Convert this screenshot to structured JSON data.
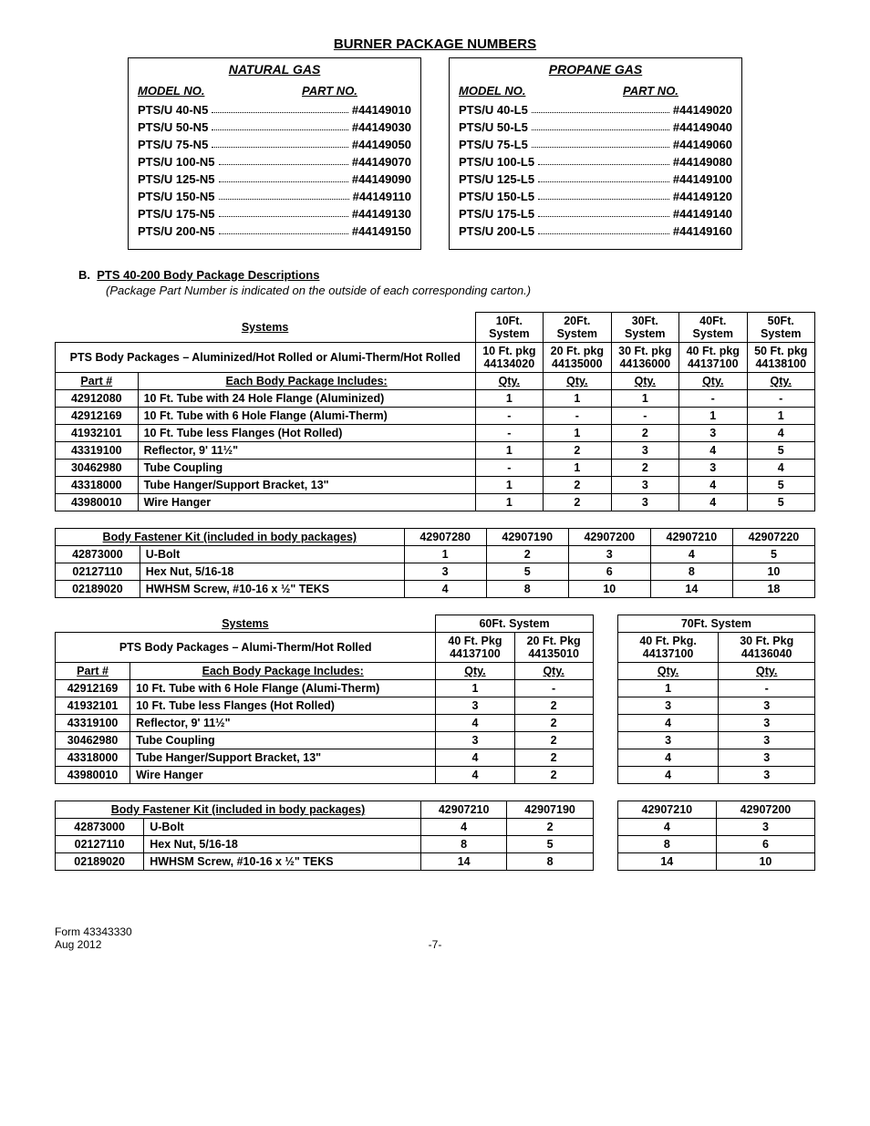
{
  "title": "BURNER PACKAGE NUMBERS",
  "burner": {
    "natural": {
      "heading": "NATURAL GAS",
      "modelHdr": "MODEL NO.",
      "partHdr": "PART NO.",
      "rows": [
        {
          "model": "PTS/U 40-N5",
          "part": "#44149010"
        },
        {
          "model": "PTS/U 50-N5",
          "part": "#44149030"
        },
        {
          "model": "PTS/U 75-N5",
          "part": "#44149050"
        },
        {
          "model": "PTS/U 100-N5",
          "part": "#44149070"
        },
        {
          "model": "PTS/U 125-N5",
          "part": "#44149090"
        },
        {
          "model": "PTS/U 150-N5",
          "part": "#44149110"
        },
        {
          "model": "PTS/U 175-N5",
          "part": "#44149130"
        },
        {
          "model": "PTS/U 200-N5",
          "part": "#44149150"
        }
      ]
    },
    "propane": {
      "heading": "PROPANE GAS",
      "modelHdr": "MODEL NO.",
      "partHdr": "PART NO.",
      "rows": [
        {
          "model": "PTS/U 40-L5",
          "part": "#44149020"
        },
        {
          "model": "PTS/U 50-L5",
          "part": "#44149040"
        },
        {
          "model": "PTS/U 75-L5",
          "part": "#44149060"
        },
        {
          "model": "PTS/U 100-L5",
          "part": "#44149080"
        },
        {
          "model": "PTS/U 125-L5",
          "part": "#44149100"
        },
        {
          "model": "PTS/U 150-L5",
          "part": "#44149120"
        },
        {
          "model": "PTS/U 175-L5",
          "part": "#44149140"
        },
        {
          "model": "PTS/U 200-L5",
          "part": "#44149160"
        }
      ]
    }
  },
  "sectionB": {
    "label": "B.",
    "title": "PTS 40-200 Body Package Descriptions",
    "note": "(Package Part Number is indicated on the outside of each corresponding carton.)"
  },
  "table1": {
    "systemsHdr": "Systems",
    "systems": [
      "10Ft. System",
      "20Ft. System",
      "30Ft. System",
      "40Ft. System",
      "50Ft. System"
    ],
    "pkgHdr": "PTS Body Packages – Aluminized/Hot Rolled or Alumi-Therm/Hot Rolled",
    "pkgs": [
      {
        "l1": "10 Ft. pkg",
        "l2": "44134020"
      },
      {
        "l1": "20 Ft. pkg",
        "l2": "44135000"
      },
      {
        "l1": "30 Ft. pkg",
        "l2": "44136000"
      },
      {
        "l1": "40 Ft. pkg",
        "l2": "44137100"
      },
      {
        "l1": "50 Ft. pkg",
        "l2": "44138100"
      }
    ],
    "partHdr": "Part #",
    "includesHdr": "Each Body Package Includes:",
    "qty": "Qty.",
    "rows": [
      {
        "p": "42912080",
        "d": "10 Ft. Tube with 24 Hole Flange (Aluminized)",
        "q": [
          "1",
          "1",
          "1",
          "-",
          "-"
        ]
      },
      {
        "p": "42912169",
        "d": "10 Ft. Tube with 6 Hole Flange (Alumi-Therm)",
        "q": [
          "-",
          "-",
          "-",
          "1",
          "1"
        ]
      },
      {
        "p": "41932101",
        "d": "10 Ft. Tube less Flanges (Hot Rolled)",
        "q": [
          "-",
          "1",
          "2",
          "3",
          "4"
        ]
      },
      {
        "p": "43319100",
        "d": "Reflector, 9' 11½\"",
        "q": [
          "1",
          "2",
          "3",
          "4",
          "5"
        ]
      },
      {
        "p": "30462980",
        "d": "Tube Coupling",
        "q": [
          "-",
          "1",
          "2",
          "3",
          "4"
        ]
      },
      {
        "p": "43318000",
        "d": "Tube Hanger/Support Bracket, 13\"",
        "q": [
          "1",
          "2",
          "3",
          "4",
          "5"
        ]
      },
      {
        "p": "43980010",
        "d": "Wire Hanger",
        "q": [
          "1",
          "2",
          "3",
          "4",
          "5"
        ]
      }
    ]
  },
  "table2": {
    "hdr": "Body Fastener Kit (included in body packages)",
    "cols": [
      "42907280",
      "42907190",
      "42907200",
      "42907210",
      "42907220"
    ],
    "rows": [
      {
        "p": "42873000",
        "d": "U-Bolt",
        "q": [
          "1",
          "2",
          "3",
          "4",
          "5"
        ]
      },
      {
        "p": "02127110",
        "d": "Hex Nut, 5/16-18",
        "q": [
          "3",
          "5",
          "6",
          "8",
          "10"
        ]
      },
      {
        "p": "02189020",
        "d": "HWHSM Screw, #10-16 x ½\" TEKS",
        "q": [
          "4",
          "8",
          "10",
          "14",
          "18"
        ]
      }
    ]
  },
  "table3": {
    "systemsHdr": "Systems",
    "sys60": "60Ft. System",
    "sys70": "70Ft. System",
    "pkgHdr": "PTS Body Packages – Alumi-Therm/Hot Rolled",
    "pkgs60": [
      {
        "l1": "40 Ft. Pkg",
        "l2": "44137100"
      },
      {
        "l1": "20 Ft. Pkg",
        "l2": "44135010"
      }
    ],
    "pkgs70": [
      {
        "l1": "40 Ft. Pkg.",
        "l2": "44137100"
      },
      {
        "l1": "30 Ft. Pkg",
        "l2": "44136040"
      }
    ],
    "partHdr": "Part #",
    "includesHdr": "Each Body Package Includes:",
    "qty": "Qty.",
    "rows": [
      {
        "p": "42912169",
        "d": "10 Ft. Tube with 6 Hole Flange (Alumi-Therm)",
        "q60": [
          "1",
          "-"
        ],
        "q70": [
          "1",
          "-"
        ]
      },
      {
        "p": "41932101",
        "d": "10 Ft. Tube less Flanges (Hot Rolled)",
        "q60": [
          "3",
          "2"
        ],
        "q70": [
          "3",
          "3"
        ]
      },
      {
        "p": "43319100",
        "d": "Reflector, 9' 11½\"",
        "q60": [
          "4",
          "2"
        ],
        "q70": [
          "4",
          "3"
        ]
      },
      {
        "p": "30462980",
        "d": "Tube Coupling",
        "q60": [
          "3",
          "2"
        ],
        "q70": [
          "3",
          "3"
        ]
      },
      {
        "p": "43318000",
        "d": "Tube Hanger/Support Bracket, 13\"",
        "q60": [
          "4",
          "2"
        ],
        "q70": [
          "4",
          "3"
        ]
      },
      {
        "p": "43980010",
        "d": "Wire Hanger",
        "q60": [
          "4",
          "2"
        ],
        "q70": [
          "4",
          "3"
        ]
      }
    ]
  },
  "table4": {
    "hdr": "Body Fastener Kit (included in body packages)",
    "cols60": [
      "42907210",
      "42907190"
    ],
    "cols70": [
      "42907210",
      "42907200"
    ],
    "rows": [
      {
        "p": "42873000",
        "d": "U-Bolt",
        "q60": [
          "4",
          "2"
        ],
        "q70": [
          "4",
          "3"
        ]
      },
      {
        "p": "02127110",
        "d": "Hex Nut, 5/16-18",
        "q60": [
          "8",
          "5"
        ],
        "q70": [
          "8",
          "6"
        ]
      },
      {
        "p": "02189020",
        "d": "HWHSM Screw, #10-16 x ½\" TEKS",
        "q60": [
          "14",
          "8"
        ],
        "q70": [
          "14",
          "10"
        ]
      }
    ]
  },
  "footer": {
    "form": "Form 43343330",
    "date": "Aug 2012",
    "page": "-7-"
  }
}
